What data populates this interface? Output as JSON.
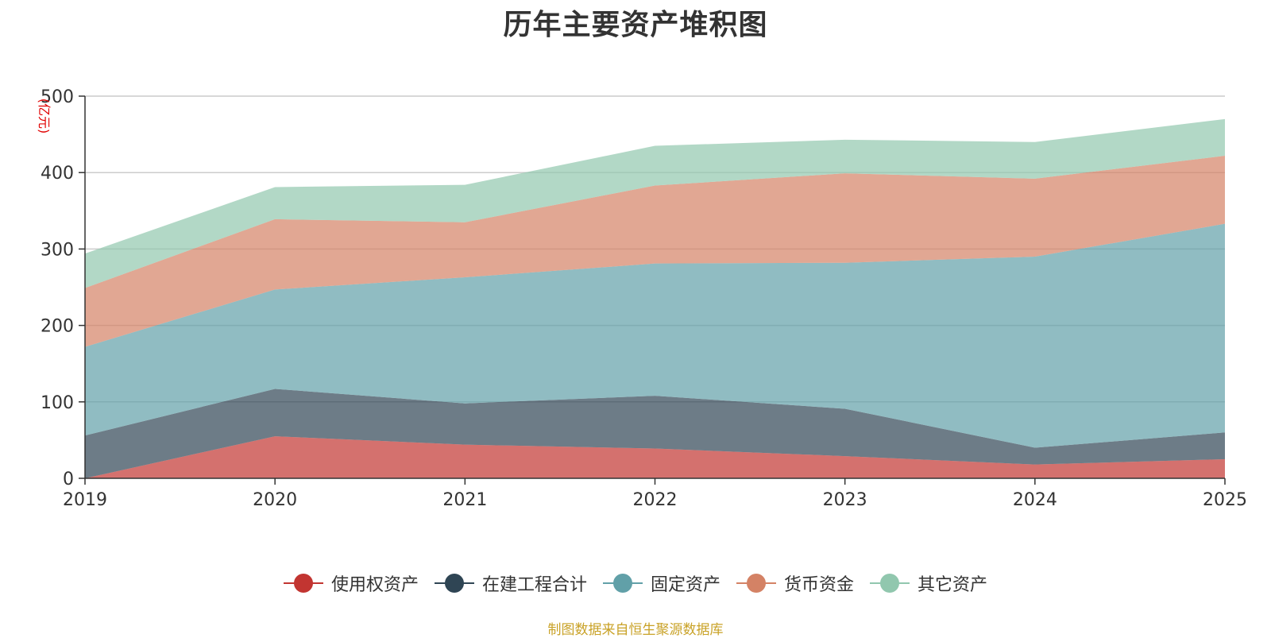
{
  "title": "历年主要资产堆积图",
  "unit_label": "(亿元)",
  "source_note": "制图数据来自恒生聚源数据库",
  "chart_data": {
    "type": "area",
    "stacked": true,
    "title": "历年主要资产堆积图",
    "ylabel": "(亿元)",
    "xlabel": "",
    "categories": [
      "2019",
      "2020",
      "2021",
      "2022",
      "2023",
      "2024",
      "2025"
    ],
    "ylim": [
      0,
      500
    ],
    "yticks": [
      0,
      100,
      200,
      300,
      400,
      500
    ],
    "grid": true,
    "legend_position": "bottom",
    "series": [
      {
        "name": "使用权资产",
        "color": "#c23531",
        "values": [
          0,
          55,
          44,
          39,
          29,
          18,
          25
        ]
      },
      {
        "name": "在建工程合计",
        "color": "#2f4554",
        "values": [
          56,
          62,
          54,
          69,
          62,
          22,
          35
        ]
      },
      {
        "name": "固定资产",
        "color": "#61a0a8",
        "values": [
          116,
          130,
          165,
          173,
          191,
          250,
          273
        ]
      },
      {
        "name": "货币资金",
        "color": "#d48265",
        "values": [
          77,
          92,
          72,
          102,
          117,
          102,
          89
        ]
      },
      {
        "name": "其它资产",
        "color": "#91c7ae",
        "values": [
          45,
          42,
          49,
          52,
          44,
          48,
          48
        ]
      }
    ]
  }
}
